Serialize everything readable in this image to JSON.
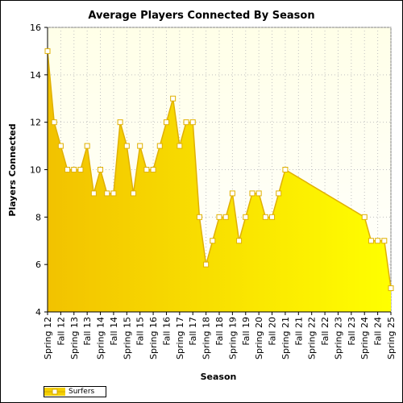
{
  "chart_data": {
    "type": "area",
    "title": "Average Players Connected By Season",
    "xlabel": "Season",
    "ylabel": "Players Connected",
    "ylim": [
      4,
      16
    ],
    "yticks": [
      4,
      6,
      8,
      10,
      12,
      14,
      16
    ],
    "grid": true,
    "legend_position": "bottom-left",
    "colors": {
      "fill_dark": "#f2c200",
      "fill_light": "#ffff00",
      "line": "#e0b000",
      "marker_fill": "#ffffff",
      "plot_bg_top": "#ffffe8",
      "plot_bg_bottom": "#ffffff",
      "grid": "#c0c0c0"
    },
    "categories": [
      "Spring 12",
      "Fall 12",
      "Spring 13",
      "Fall 13",
      "Spring 14",
      "Fall 14",
      "Spring 15",
      "Fall 15",
      "Spring 16",
      "Fall 16",
      "Spring 17",
      "Fall 17",
      "Spring 18",
      "Fall 18",
      "Spring 19",
      "Fall 19",
      "Spring 20",
      "Fall 20",
      "Spring 21",
      "Fall 21",
      "Spring 22",
      "Fall 22",
      "Spring 23",
      "Fall 23",
      "Spring 24",
      "Fall 24",
      "Spring 25"
    ],
    "series": [
      {
        "name": "Surfers",
        "x": [
          0,
          0.5,
          1,
          1.5,
          2,
          2.5,
          3,
          3.5,
          4,
          4.5,
          5,
          5.5,
          6,
          6.5,
          7,
          7.5,
          8,
          8.5,
          9,
          9.5,
          10,
          10.5,
          11,
          11.5,
          12,
          12.5,
          13,
          13.5,
          14,
          14.5,
          15,
          15.5,
          16,
          16.5,
          17,
          17.5,
          18,
          24,
          24.5,
          25,
          25.5,
          26
        ],
        "values": [
          15,
          12,
          11,
          10,
          10,
          10,
          11,
          9,
          10,
          9,
          9,
          12,
          11,
          9,
          11,
          10,
          10,
          11,
          12,
          13,
          11,
          12,
          12,
          8,
          6,
          7,
          8,
          8,
          9,
          7,
          8,
          9,
          9,
          8,
          8,
          9,
          10,
          8,
          7,
          7,
          7,
          5
        ]
      }
    ]
  }
}
